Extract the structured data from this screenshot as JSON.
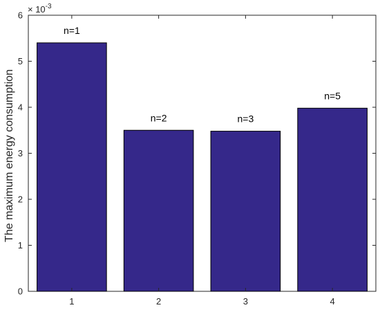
{
  "chart_data": {
    "type": "bar",
    "categories": [
      "1",
      "2",
      "3",
      "4"
    ],
    "values": [
      0.0054,
      0.0035,
      0.00348,
      0.00398
    ],
    "data_labels": [
      "n=1",
      "n=2",
      "n=3",
      "n=5"
    ],
    "title": "",
    "xlabel": "",
    "ylabel": "The maximum energy consumption",
    "ylim": [
      0,
      0.006
    ],
    "ytick_labels": [
      "0",
      "1",
      "2",
      "3",
      "4",
      "5",
      "6"
    ],
    "y_exponent": {
      "base": "× 10",
      "power": "-3"
    },
    "grid": false,
    "legend": "none",
    "colors": {
      "bar": "#35288a",
      "bar_edge": "#000000",
      "axis": "#262626"
    }
  }
}
